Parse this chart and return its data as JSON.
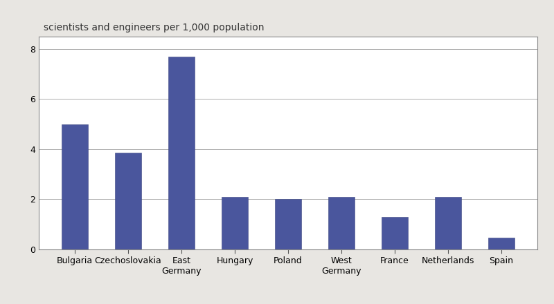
{
  "categories": [
    "Bulgaria",
    "Czechoslovakia",
    "East\nGermany",
    "Hungary",
    "Poland",
    "West\nGermany",
    "France",
    "Netherlands",
    "Spain"
  ],
  "values": [
    5.0,
    3.85,
    7.7,
    2.1,
    2.0,
    2.1,
    1.3,
    2.1,
    0.45
  ],
  "bar_color": "#4a569d",
  "bar_edge_color": "#3a4580",
  "title": "scientists and engineers per 1,000 population",
  "ylim": [
    0,
    8.5
  ],
  "yticks": [
    0,
    2,
    4,
    6,
    8
  ],
  "title_fontsize": 10,
  "tick_fontsize": 9,
  "background_color": "#ffffff",
  "figure_bg": "#ffffff",
  "outer_bg": "#e8e6e2",
  "bar_width": 0.5
}
